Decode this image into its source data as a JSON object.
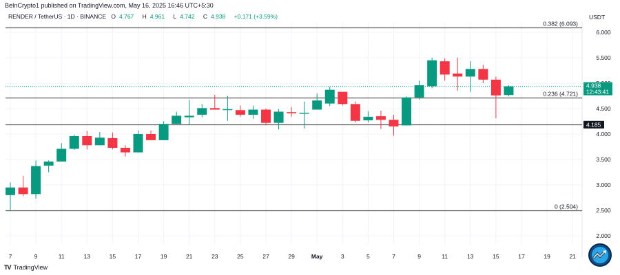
{
  "header": {
    "publisher_line": "BeInCrypto1 published on TradingView.com, May 16, 2025 16:46 UTC+5:30",
    "symbol": "RENDER / TetherUS · 1D · BINANCE",
    "open_label": "O",
    "open": "4.767",
    "high_label": "H",
    "high": "4.961",
    "low_label": "L",
    "low": "4.742",
    "close_label": "C",
    "close": "4.938",
    "change": "+0.171 (+3.59%)"
  },
  "price_axis": {
    "currency": "USDT",
    "ticks": [
      "6.000",
      "5.500",
      "5.000",
      "4.500",
      "4.000",
      "3.500",
      "3.000",
      "2.500",
      "2.000"
    ],
    "last_price_label": "4.938",
    "countdown_label": "12:43:41",
    "level_badge": "4.185"
  },
  "time_axis": {
    "ticks": [
      "7",
      "9",
      "11",
      "13",
      "15",
      "17",
      "19",
      "21",
      "23",
      "25",
      "27",
      "29",
      "May",
      "3",
      "5",
      "7",
      "9",
      "11",
      "13",
      "15",
      "17",
      "19",
      "21"
    ]
  },
  "footer": {
    "logo_text": "TradingView",
    "logo_mark": "TV"
  },
  "colors": {
    "up": "#089981",
    "down": "#f23645",
    "line": "#555555",
    "grid": "#f0f3fa",
    "last_price": "#089981"
  },
  "chart_data": {
    "type": "candlestick",
    "title": "RENDER / TetherUS · 1D · BINANCE",
    "xlabel": "",
    "ylabel": "USDT",
    "ylim": [
      1.85,
      6.15
    ],
    "grid": true,
    "x": [
      "Apr 7",
      "Apr 8",
      "Apr 9",
      "Apr 10",
      "Apr 11",
      "Apr 12",
      "Apr 13",
      "Apr 14",
      "Apr 15",
      "Apr 16",
      "Apr 17",
      "Apr 18",
      "Apr 19",
      "Apr 20",
      "Apr 21",
      "Apr 22",
      "Apr 23",
      "Apr 24",
      "Apr 25",
      "Apr 26",
      "Apr 27",
      "Apr 28",
      "Apr 29",
      "Apr 30",
      "May 1",
      "May 2",
      "May 3",
      "May 4",
      "May 5",
      "May 6",
      "May 7",
      "May 8",
      "May 9",
      "May 10",
      "May 11",
      "May 12",
      "May 13",
      "May 14",
      "May 15",
      "May 16"
    ],
    "open": [
      2.8,
      2.95,
      2.82,
      3.38,
      3.46,
      3.71,
      3.96,
      3.78,
      3.92,
      3.73,
      3.64,
      4.0,
      3.88,
      4.2,
      4.33,
      4.38,
      4.51,
      4.48,
      4.47,
      4.38,
      4.48,
      4.22,
      4.43,
      4.41,
      4.48,
      4.6,
      4.83,
      4.59,
      4.27,
      4.35,
      4.28,
      4.17,
      4.72,
      4.94,
      5.43,
      5.19,
      5.13,
      5.28,
      5.07,
      4.767
    ],
    "high": [
      3.05,
      3.18,
      3.48,
      3.48,
      3.82,
      3.99,
      4.06,
      4.04,
      4.03,
      3.78,
      4.07,
      4.07,
      4.25,
      4.44,
      4.67,
      4.59,
      4.77,
      4.75,
      4.56,
      4.56,
      4.5,
      4.49,
      4.53,
      4.64,
      4.8,
      4.93,
      4.83,
      4.64,
      4.45,
      4.46,
      4.38,
      4.74,
      5.05,
      5.5,
      5.49,
      5.5,
      5.43,
      5.36,
      5.13,
      4.961
    ],
    "low": [
      2.51,
      2.78,
      2.73,
      3.25,
      3.46,
      3.69,
      3.7,
      3.78,
      3.7,
      3.56,
      3.64,
      3.88,
      3.88,
      4.2,
      4.18,
      4.33,
      4.48,
      4.26,
      4.34,
      4.3,
      4.17,
      4.09,
      4.34,
      4.11,
      4.48,
      4.55,
      4.56,
      4.23,
      4.23,
      4.1,
      3.97,
      4.17,
      4.68,
      4.9,
      5.05,
      4.85,
      4.83,
      5.0,
      4.31,
      4.742
    ],
    "close": [
      2.95,
      2.82,
      3.37,
      3.46,
      3.71,
      3.96,
      3.78,
      3.93,
      3.73,
      3.64,
      4.0,
      3.88,
      4.2,
      4.36,
      4.36,
      4.51,
      4.48,
      4.49,
      4.38,
      4.48,
      4.22,
      4.44,
      4.41,
      4.42,
      4.66,
      4.87,
      4.59,
      4.26,
      4.34,
      4.28,
      4.15,
      4.72,
      4.96,
      5.45,
      5.17,
      5.13,
      5.28,
      5.07,
      4.76,
      4.938
    ],
    "annotations": [
      {
        "label": "0.382 (6.093)",
        "value": 6.093,
        "type": "fib_level"
      },
      {
        "label": "0.236 (4.721)",
        "value": 4.721,
        "type": "fib_level"
      },
      {
        "label": "4.185",
        "value": 4.185,
        "type": "horizontal_level"
      },
      {
        "label": "0 (2.504)",
        "value": 2.504,
        "type": "fib_level"
      }
    ],
    "last_price": 4.938
  }
}
